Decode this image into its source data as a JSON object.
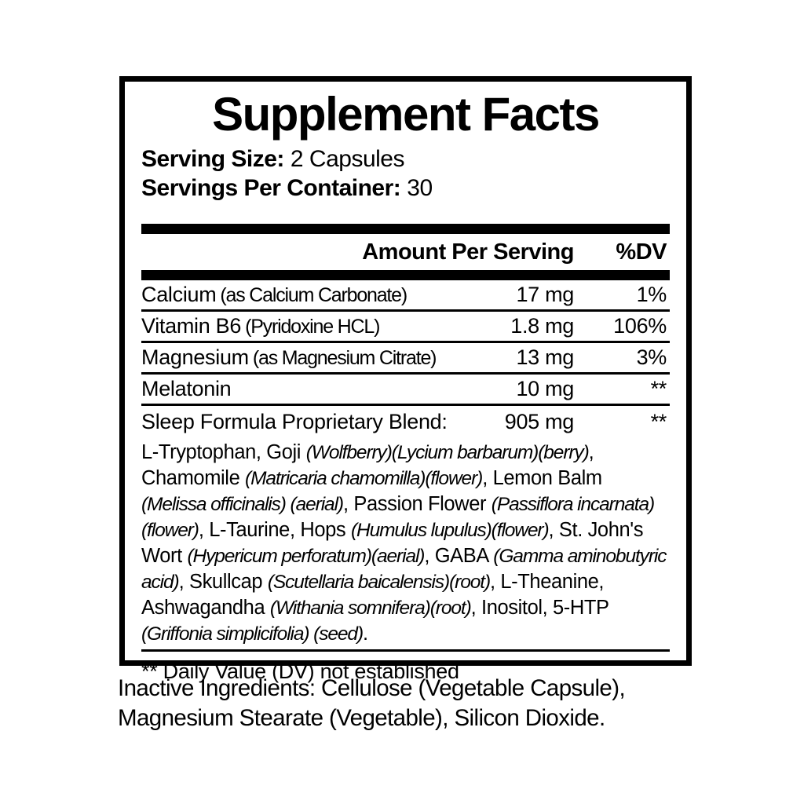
{
  "panel": {
    "title": "Supplement Facts",
    "serving": {
      "size_label": "Serving Size:",
      "size_value": "2 Capsules",
      "container_label": "Servings Per Container:",
      "container_value": "30"
    },
    "columns": {
      "amount": "Amount Per Serving",
      "dv": "%DV"
    },
    "rows": [
      {
        "name": "Calcium",
        "detail": "(as Calcium Carbonate)",
        "amount": "17 mg",
        "dv": "1%"
      },
      {
        "name": "Vitamin B6",
        "detail": "(Pyridoxine HCL)",
        "amount": "1.8 mg",
        "dv": "106%"
      },
      {
        "name": "Magnesium",
        "detail": "(as Magnesium Citrate)",
        "amount": "13 mg",
        "dv": "3%"
      },
      {
        "name": "Melatonin",
        "detail": "",
        "amount": "10 mg",
        "dv": "**"
      },
      {
        "name": "Sleep Formula Proprietary Blend:",
        "detail": "",
        "amount": "905 mg",
        "dv": "**"
      }
    ],
    "blend_segments": [
      {
        "text": "L-Tryptophan, Goji ",
        "italic": false
      },
      {
        "text": "(Wolfberry)(Lycium barbarum)(berry)",
        "italic": true
      },
      {
        "text": ", Chamomile ",
        "italic": false
      },
      {
        "text": "(Matricaria chamomilla)(flower)",
        "italic": true
      },
      {
        "text": ", Lemon Balm ",
        "italic": false
      },
      {
        "text": "(Melissa officinalis) (aerial)",
        "italic": true
      },
      {
        "text": ", Passion Flower ",
        "italic": false
      },
      {
        "text": "(Passiflora incarnata)(flower)",
        "italic": true
      },
      {
        "text": ", L-Taurine, Hops ",
        "italic": false
      },
      {
        "text": "(Humulus lupulus)(flower)",
        "italic": true
      },
      {
        "text": ", St. John's Wort ",
        "italic": false
      },
      {
        "text": "(Hypericum perforatum)(aerial)",
        "italic": true
      },
      {
        "text": ", GABA ",
        "italic": false
      },
      {
        "text": "(Gamma aminobutyric acid)",
        "italic": true
      },
      {
        "text": ", Skullcap ",
        "italic": false
      },
      {
        "text": "(Scutellaria baicalensis)(root)",
        "italic": true
      },
      {
        "text": ", L-Theanine, Ashwagandha ",
        "italic": false
      },
      {
        "text": "(Withania somnifera)(root)",
        "italic": true
      },
      {
        "text": ", Inositol, 5-HTP ",
        "italic": false
      },
      {
        "text": "(Griffonia simplicifolia) (seed)",
        "italic": true
      },
      {
        "text": ".",
        "italic": false
      }
    ],
    "footnote": "** Daily Value (DV) not established"
  },
  "inactive_ingredients": "Inactive Ingredients: Cellulose (Vegetable Capsule), Magnesium Stearate (Vegetable), Silicon Dioxide.",
  "colors": {
    "ink": "#000000",
    "background": "#ffffff"
  }
}
